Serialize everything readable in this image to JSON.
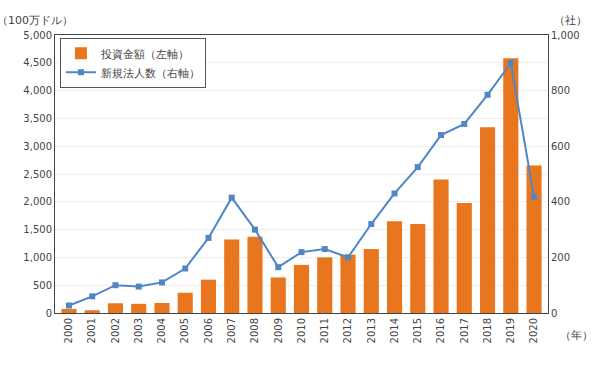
{
  "chart_data": {
    "type": "bar",
    "ylabel": "（100万ドル）",
    "y2label": "（社）",
    "xlabel": "（年）",
    "x": [
      2000,
      2001,
      2002,
      2003,
      2004,
      2005,
      2006,
      2007,
      2008,
      2009,
      2010,
      2011,
      2012,
      2013,
      2014,
      2015,
      2016,
      2017,
      2018,
      2019,
      2020
    ],
    "series": [
      {
        "name": "投資金額（左軸）",
        "type": "bar",
        "color": "#e8761e",
        "values": [
          73.13,
          50,
          175,
          165,
          180,
          365,
          600,
          1320,
          1370,
          640,
          865,
          1000,
          1050,
          1150,
          1650,
          1600,
          2400,
          1980,
          3341,
          4584,
          2652
        ]
      },
      {
        "name": "新規法人数（右軸）",
        "type": "line",
        "color": "#4f86c6",
        "marker": "square",
        "axis": "y2",
        "values": [
          27,
          60,
          100,
          95,
          110,
          160,
          270,
          415,
          300,
          165,
          219,
          230,
          200,
          320,
          430,
          525,
          640,
          680,
          785,
          899,
          418
        ]
      }
    ],
    "xlim": [
      1999.4,
      2020.6
    ],
    "xticks": [
      2000,
      2001,
      2002,
      2003,
      2004,
      2005,
      2006,
      2007,
      2008,
      2009,
      2010,
      2011,
      2012,
      2013,
      2014,
      2015,
      2016,
      2017,
      2018,
      2019,
      2020
    ],
    "ylim": [
      0,
      5000
    ],
    "yticks": [
      0,
      500,
      {
        "value": 1000,
        "label": "1,000"
      },
      {
        "value": 1500,
        "label": "1,500"
      },
      {
        "value": 2000,
        "label": "2,000"
      },
      {
        "value": 2500,
        "label": "2,500"
      },
      {
        "value": 3000,
        "label": "3,000"
      },
      {
        "value": 3500,
        "label": "3,500"
      },
      {
        "value": 4000,
        "label": "4,000"
      },
      {
        "value": 4500,
        "label": "4,500"
      },
      {
        "value": 5000,
        "label": "5,000"
      }
    ],
    "y2lim": [
      0,
      1000
    ],
    "y2ticks": [
      0,
      200,
      400,
      600,
      800,
      {
        "value": 1000,
        "label": "1,000"
      }
    ],
    "grid": true,
    "legend": "upper left"
  }
}
